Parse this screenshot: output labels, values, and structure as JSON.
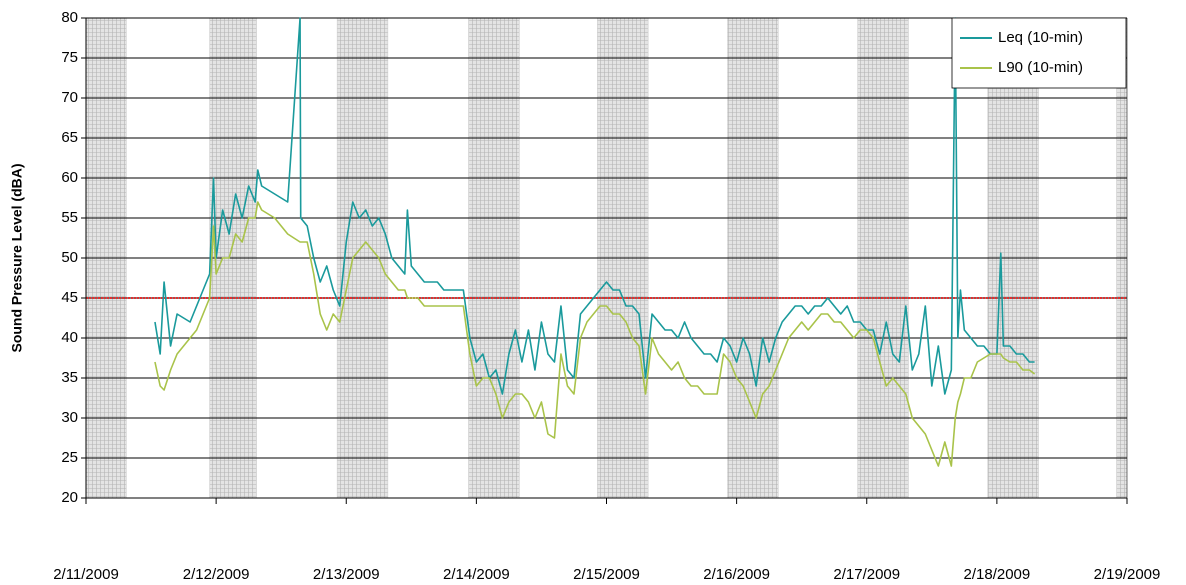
{
  "chart_data": {
    "type": "line",
    "y_label": "Sound Pressure Level (dBA)",
    "xlim": [
      0,
      8
    ],
    "xticks": [
      {
        "value": 0,
        "label": "2/11/2009"
      },
      {
        "value": 1,
        "label": "2/12/2009"
      },
      {
        "value": 2,
        "label": "2/13/2009"
      },
      {
        "value": 3,
        "label": "2/14/2009"
      },
      {
        "value": 4,
        "label": "2/15/2009"
      },
      {
        "value": 5,
        "label": "2/16/2009"
      },
      {
        "value": 6,
        "label": "2/17/2009"
      },
      {
        "value": 7,
        "label": "2/18/2009"
      },
      {
        "value": 8,
        "label": "2/19/2009"
      }
    ],
    "ylim": [
      20,
      80
    ],
    "yticks": [
      20,
      25,
      30,
      35,
      40,
      45,
      50,
      55,
      60,
      65,
      70,
      75,
      80
    ],
    "grid": true,
    "legend": "top-right",
    "reference_line": {
      "value": 45,
      "color": "#e03030"
    },
    "shaded_intervals": {
      "color": "#c8c8c8",
      "ranges": [
        [
          0,
          0.31
        ],
        [
          0.95,
          1.31
        ],
        [
          1.93,
          2.32
        ],
        [
          2.94,
          3.33
        ],
        [
          3.93,
          4.32
        ],
        [
          4.93,
          5.32
        ],
        [
          5.93,
          6.32
        ],
        [
          6.93,
          7.32
        ],
        [
          7.92,
          8
        ]
      ]
    },
    "x": [
      0.53,
      0.57,
      0.6,
      0.65,
      0.7,
      0.8,
      0.85,
      0.9,
      0.95,
      0.98,
      1.0,
      1.05,
      1.1,
      1.15,
      1.2,
      1.25,
      1.3,
      1.32,
      1.35,
      1.45,
      1.55,
      1.645,
      1.65,
      1.7,
      1.75,
      1.8,
      1.85,
      1.9,
      1.95,
      2.0,
      2.05,
      2.1,
      2.15,
      2.2,
      2.25,
      2.3,
      2.35,
      2.4,
      2.45,
      2.47,
      2.5,
      2.55,
      2.6,
      2.7,
      2.75,
      2.8,
      2.9,
      2.95,
      3.0,
      3.05,
      3.1,
      3.15,
      3.2,
      3.25,
      3.3,
      3.35,
      3.4,
      3.45,
      3.5,
      3.55,
      3.6,
      3.65,
      3.7,
      3.75,
      3.8,
      3.85,
      3.9,
      3.95,
      4.0,
      4.05,
      4.1,
      4.15,
      4.2,
      4.25,
      4.3,
      4.35,
      4.4,
      4.45,
      4.5,
      4.55,
      4.6,
      4.65,
      4.7,
      4.75,
      4.8,
      4.85,
      4.9,
      4.95,
      5.0,
      5.05,
      5.1,
      5.15,
      5.2,
      5.25,
      5.3,
      5.35,
      5.4,
      5.45,
      5.5,
      5.55,
      5.6,
      5.65,
      5.7,
      5.75,
      5.8,
      5.85,
      5.9,
      5.95,
      6.0,
      6.05,
      6.1,
      6.15,
      6.2,
      6.25,
      6.3,
      6.35,
      6.4,
      6.45,
      6.5,
      6.55,
      6.6,
      6.65,
      6.68,
      6.7,
      6.72,
      6.75,
      6.8,
      6.85,
      6.9,
      6.95,
      7.0,
      7.03,
      7.05,
      7.1,
      7.15,
      7.2,
      7.25,
      7.29
    ],
    "series": [
      {
        "name": "Leq (10-min)",
        "color": "#1a9a9c",
        "values": [
          42,
          38,
          47,
          39,
          43,
          42,
          44,
          46,
          48,
          60,
          50,
          56,
          53,
          58,
          55,
          59,
          57,
          61,
          59,
          58,
          57,
          80,
          55,
          54,
          50,
          47,
          49,
          46,
          44,
          52,
          57,
          55,
          56,
          54,
          55,
          53,
          50,
          49,
          48,
          56,
          49,
          48,
          47,
          47,
          46,
          46,
          46,
          40,
          37,
          38,
          35,
          36,
          33,
          38,
          41,
          37,
          41,
          36,
          42,
          38,
          37,
          44,
          36,
          35,
          43,
          44,
          45,
          46,
          47,
          46,
          46,
          44,
          44,
          43,
          35,
          43,
          42,
          41,
          41,
          40,
          42,
          40,
          39,
          38,
          38,
          37,
          40,
          39,
          37,
          40,
          38,
          34,
          40,
          37,
          40,
          42,
          43,
          44,
          44,
          43,
          44,
          44,
          45,
          44,
          43,
          44,
          42,
          42,
          41,
          41,
          38,
          42,
          38,
          37,
          44,
          36,
          38,
          44,
          34,
          39,
          33,
          36,
          80,
          40,
          46,
          41,
          40,
          39,
          39,
          38,
          38,
          50.6,
          39,
          39,
          38,
          38,
          37,
          37
        ]
      },
      {
        "name": "L90 (10-min)",
        "color": "#a9c34a",
        "values": [
          37,
          34,
          33.5,
          36,
          38,
          40,
          41,
          43,
          45,
          54,
          48,
          50,
          50,
          53,
          52,
          55,
          55,
          57,
          56,
          55,
          53,
          52,
          52,
          52,
          48,
          43,
          41,
          43,
          42,
          46,
          50,
          51,
          52,
          51,
          50,
          48,
          47,
          46,
          46,
          45,
          45,
          45,
          44,
          44,
          44,
          44,
          44,
          38,
          34,
          35,
          35,
          33,
          30,
          32,
          33,
          33,
          32,
          30,
          32,
          28,
          27.5,
          38,
          34,
          33,
          40,
          42,
          43,
          44,
          44,
          43,
          43,
          42,
          40,
          39,
          33,
          40,
          38,
          37,
          36,
          37,
          35,
          34,
          34,
          33,
          33,
          33,
          38,
          37,
          35,
          34,
          32,
          30,
          33,
          34,
          36,
          38,
          40,
          41,
          42,
          41,
          42,
          43,
          43,
          42,
          42,
          41,
          40,
          41,
          41,
          40,
          37,
          34,
          35,
          34,
          33,
          30,
          29,
          28,
          26,
          24,
          27,
          24,
          30,
          32,
          33,
          35,
          35,
          37,
          37.5,
          38,
          38,
          38,
          37.5,
          37,
          37,
          36,
          36,
          35.5
        ]
      }
    ]
  }
}
